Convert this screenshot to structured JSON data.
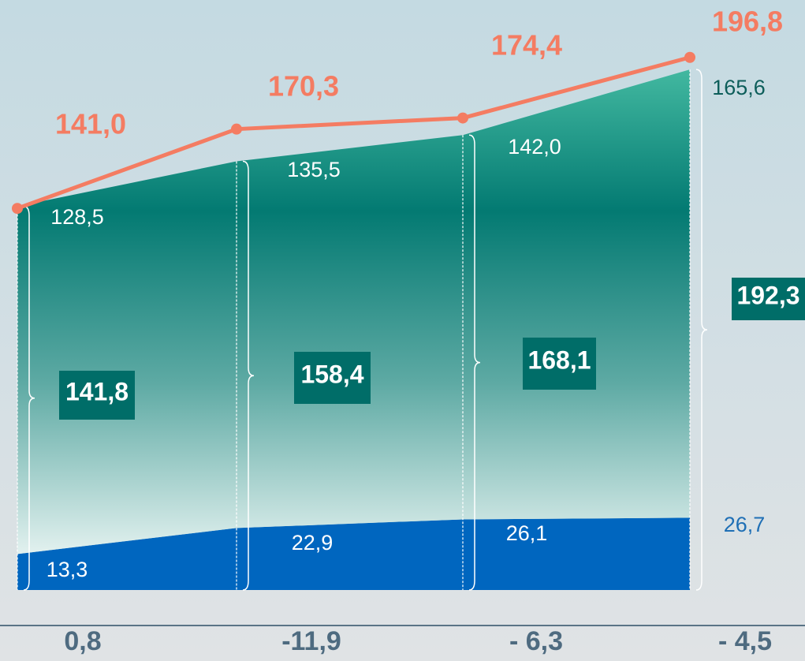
{
  "chart_data": {
    "type": "stacked_area_line",
    "categories": [
      "0,8",
      "-11,9",
      "- 6,3",
      "- 4,5"
    ],
    "series": [
      {
        "color": "#0066bf",
        "values": [
          13.3,
          22.9,
          26.1,
          26.7
        ],
        "value_labels": [
          "13,3",
          "22,9",
          "26,1",
          "26,7"
        ]
      },
      {
        "color": "#0a7a72",
        "values": [
          128.5,
          135.5,
          142.0,
          165.6
        ],
        "value_labels": [
          "128,5",
          "135,5",
          "142,0",
          "165,6"
        ]
      }
    ],
    "totals": {
      "color": "#006d68",
      "values": [
        141.8,
        158.4,
        168.1,
        192.3
      ],
      "value_labels": [
        "141,8",
        "158,4",
        "168,1",
        "192,3"
      ]
    },
    "line": {
      "color": "#f47c62",
      "values": [
        141.0,
        170.3,
        174.4,
        196.8
      ],
      "value_labels": [
        "141,0",
        "170,3",
        "174,4",
        "196,8"
      ]
    },
    "ylim": [
      0,
      218
    ]
  }
}
